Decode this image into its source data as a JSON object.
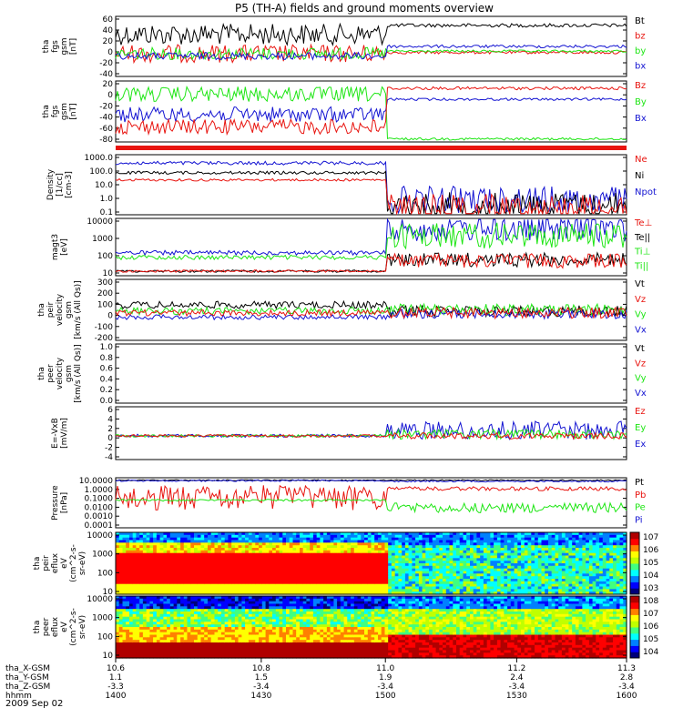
{
  "title": "P5 (TH-A) fields and ground moments overview",
  "colors": {
    "black": "#000000",
    "red": "#e8140f",
    "green": "#1ee614",
    "blue": "#1414d2"
  },
  "x_axis": {
    "tick_labels": [
      "10.6",
      "10.8",
      "11.0",
      "11.2",
      "11.3"
    ],
    "rows": [
      {
        "label": "tha_X-GSM",
        "values": [
          "10.6",
          "10.8",
          "11.0",
          "11.2",
          "11.3"
        ]
      },
      {
        "label": "tha_Y-GSM",
        "values": [
          "1.1",
          "1.5",
          "1.9",
          "2.4",
          "2.8"
        ]
      },
      {
        "label": "tha_Z-GSM",
        "values": [
          "-3.3",
          "-3.4",
          "-3.4",
          "-3.4",
          "-3.4"
        ]
      },
      {
        "label": "hhmm",
        "values": [
          "1400",
          "1430",
          "1500",
          "1530",
          "1600"
        ]
      }
    ],
    "date": "2009 Sep 02"
  },
  "chart_data": [
    {
      "type": "line",
      "ylabel": [
        "tha",
        "fgs",
        "gsm",
        "[nT]"
      ],
      "yticks": [
        "60",
        "40",
        "20",
        "0",
        "-20",
        "-40"
      ],
      "legend": [
        "Bt",
        "bz",
        "by",
        "bx"
      ],
      "legend_colors": [
        "black",
        "red",
        "green",
        "blue"
      ]
    },
    {
      "type": "line",
      "ylabel": [
        "tha",
        "fgs",
        "gsm",
        "[nT]"
      ],
      "yticks": [
        "20",
        "0",
        "-20",
        "-40",
        "-60",
        "-80"
      ],
      "legend": [
        "Bz",
        "By",
        "Bx"
      ],
      "legend_colors": [
        "red",
        "green",
        "blue"
      ]
    },
    {
      "type": "line",
      "ylabel": [
        "Density",
        "[1/cc]",
        "[cm-3]"
      ],
      "yticks": [
        "1000.0",
        "100.0",
        "10.0",
        "1.0",
        "0.1"
      ],
      "log_scale": true,
      "legend": [
        "Ne",
        "Ni",
        "Npot"
      ],
      "legend_colors": [
        "red",
        "black",
        "blue"
      ]
    },
    {
      "type": "line",
      "ylabel": [
        "magt3",
        "[eV]"
      ],
      "yticks": [
        "10000",
        "1000",
        "100",
        "10"
      ],
      "log_scale": true,
      "legend": [
        "Te⊥",
        "Te||",
        "Ti⊥",
        "Ti||"
      ],
      "legend_colors": [
        "red",
        "black",
        "green",
        "green"
      ]
    },
    {
      "type": "line",
      "ylabel": [
        "tha",
        "peir",
        "velocity",
        "gsm",
        "[km/s (All Qs)]"
      ],
      "yticks": [
        "300",
        "200",
        "100",
        "0",
        "-100",
        "-200"
      ],
      "legend": [
        "Vt",
        "Vz",
        "Vy",
        "Vx"
      ],
      "legend_colors": [
        "black",
        "red",
        "green",
        "blue"
      ]
    },
    {
      "type": "line",
      "ylabel": [
        "tha",
        "peer",
        "velocity",
        "gsm",
        "[km/s (All Qs)]"
      ],
      "yticks": [
        "1.0",
        "0.8",
        "0.6",
        "0.4",
        "0.2",
        "0.0"
      ],
      "legend": [
        "Vt",
        "Vz",
        "Vy",
        "Vx"
      ],
      "legend_colors": [
        "black",
        "red",
        "green",
        "blue"
      ]
    },
    {
      "type": "line",
      "ylabel": [
        "E=-VxB",
        "[mV/m]"
      ],
      "yticks": [
        "6",
        "4",
        "2",
        "0",
        "-2",
        "-4"
      ],
      "legend": [
        "Ez",
        "Ey",
        "Ex"
      ],
      "legend_colors": [
        "red",
        "green",
        "blue"
      ]
    },
    {
      "type": "line",
      "ylabel": [
        "Pressure",
        "[nPa]"
      ],
      "yticks": [
        "10.0000",
        "1.0000",
        "0.1000",
        "0.0100",
        "0.0010",
        "0.0001"
      ],
      "log_scale": true,
      "legend": [
        "Pt",
        "Pb",
        "Pe",
        "Pi"
      ],
      "legend_colors": [
        "black",
        "red",
        "green",
        "blue"
      ]
    },
    {
      "type": "heatmap",
      "ylabel": [
        "tha",
        "peir",
        "eflux",
        "eV",
        "(cm^2-s-",
        "sr-eV)"
      ],
      "yticks": [
        "10000",
        "1000",
        "100",
        "10"
      ],
      "log_scale": true,
      "colorbar_ticks": [
        "10^7",
        "10^6",
        "10^5",
        "10^4",
        "10^3"
      ]
    },
    {
      "type": "heatmap",
      "ylabel": [
        "tha",
        "peer",
        "eflux",
        "eV",
        "(cm^2-s-",
        "sr-eV)"
      ],
      "yticks": [
        "10000",
        "1000",
        "100",
        "10"
      ],
      "log_scale": true,
      "colorbar_ticks": [
        "10^8",
        "10^7",
        "10^6",
        "10^5",
        "10^4"
      ]
    }
  ]
}
